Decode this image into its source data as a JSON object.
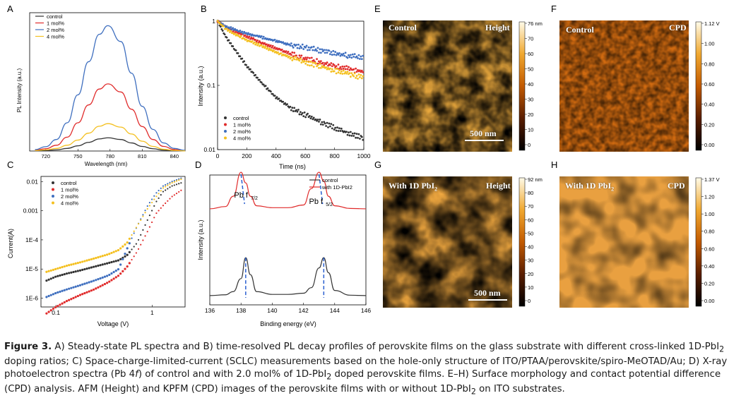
{
  "panels": {
    "A": {
      "label": "A",
      "ylabel": "PL Intensity (a.u.)",
      "xlabel": "Wavelength (nm)"
    },
    "B": {
      "label": "B",
      "ylabel": "Intensity (a.u.)",
      "xlabel": "Time (ns)"
    },
    "C": {
      "label": "C",
      "ylabel": "Current(A)",
      "xlabel": "Voltage (V)"
    },
    "D": {
      "label": "D",
      "ylabel": "Intensity (a.u.)",
      "xlabel": "Binding energy (eV)",
      "peak1": "Pb f",
      "peak1_sub": "7/2",
      "peak2": "Pb f",
      "peak2_sub": "5/2"
    },
    "E": {
      "label": "E",
      "left": "Control",
      "right": "Height",
      "scale": "500 nm",
      "cb_ticks": [
        "76 nm",
        "70",
        "60",
        "50",
        "40",
        "30",
        "20",
        "10",
        "0"
      ]
    },
    "F": {
      "label": "F",
      "left": "Control",
      "right": "CPD",
      "cb_ticks": [
        "1.12 V",
        "1.00",
        "0.80",
        "0.60",
        "0.40",
        "0.20",
        "0.00"
      ]
    },
    "G": {
      "label": "G",
      "left": "With 1D PbI",
      "left_sub": "2",
      "right": "Height",
      "scale": "500 nm",
      "cb_ticks": [
        "92 nm",
        "80",
        "70",
        "60",
        "50",
        "40",
        "30",
        "20",
        "10",
        "0"
      ]
    },
    "H": {
      "label": "H",
      "left": "With 1D PbI",
      "left_sub": "2",
      "right": "CPD",
      "cb_ticks": [
        "1.37 V",
        "1.20",
        "1.00",
        "0.80",
        "0.60",
        "0.40",
        "0.20",
        "0.00"
      ]
    }
  },
  "chart_data": [
    {
      "type": "line",
      "panel": "A",
      "x": [
        710,
        720,
        730,
        740,
        750,
        760,
        770,
        778,
        790,
        800,
        810,
        820,
        830,
        840,
        850
      ],
      "series": [
        {
          "name": "control",
          "color": "#333333",
          "values": [
            0.1,
            0.2,
            0.4,
            0.9,
            1.8,
            3.0,
            4.2,
            4.6,
            4.0,
            2.8,
            1.6,
            0.8,
            0.3,
            0.1,
            0.05
          ]
        },
        {
          "name": "1 mol%",
          "color": "#e02b2b",
          "values": [
            0.3,
            0.8,
            2.0,
            4.8,
            9.8,
            16.0,
            21.5,
            23.3,
            20.5,
            14.5,
            8.5,
            4.0,
            1.6,
            0.5,
            0.1
          ]
        },
        {
          "name": "2 mol%",
          "color": "#3f6fbf",
          "values": [
            0.5,
            1.5,
            4.0,
            9.8,
            19.5,
            31.0,
            40.5,
            43.5,
            38.0,
            27.0,
            15.5,
            7.5,
            2.8,
            0.9,
            0.2
          ]
        },
        {
          "name": "4 mol%",
          "color": "#f4c020",
          "values": [
            0.15,
            0.4,
            0.9,
            2.0,
            3.8,
            6.2,
            8.6,
            9.5,
            8.3,
            5.9,
            3.4,
            1.6,
            0.6,
            0.2,
            0.05
          ]
        }
      ],
      "xticks": [
        720,
        730,
        750,
        760,
        780,
        790,
        810,
        820,
        840
      ],
      "xtick_labels": [
        "720",
        "750",
        "780",
        "810",
        "840"
      ],
      "xlim": [
        705,
        850
      ],
      "ylim": [
        0,
        48
      ],
      "legend": "top-left"
    },
    {
      "type": "scatter",
      "panel": "B",
      "x": [
        0,
        50,
        100,
        200,
        300,
        400,
        500,
        600,
        700,
        800,
        900,
        1000
      ],
      "series": [
        {
          "name": "control",
          "color": "#333333",
          "values": [
            1.0,
            0.6,
            0.42,
            0.2,
            0.11,
            0.065,
            0.045,
            0.035,
            0.027,
            0.022,
            0.018,
            0.015
          ]
        },
        {
          "name": "1 mol%",
          "color": "#e02b2b",
          "values": [
            1.0,
            0.82,
            0.72,
            0.58,
            0.46,
            0.38,
            0.31,
            0.26,
            0.23,
            0.2,
            0.18,
            0.16
          ]
        },
        {
          "name": "2 mol%",
          "color": "#3f6fbf",
          "values": [
            1.0,
            0.85,
            0.76,
            0.64,
            0.56,
            0.49,
            0.43,
            0.39,
            0.35,
            0.32,
            0.29,
            0.27
          ]
        },
        {
          "name": "4 mol%",
          "color": "#f4c020",
          "values": [
            1.0,
            0.78,
            0.66,
            0.51,
            0.41,
            0.33,
            0.27,
            0.23,
            0.2,
            0.17,
            0.15,
            0.13
          ]
        }
      ],
      "xtick_labels": [
        "0",
        "200",
        "400",
        "600",
        "800",
        "1000"
      ],
      "ytick_labels": [
        "1",
        "0.1",
        "0.01"
      ],
      "xlim": [
        0,
        1000
      ],
      "ylim": [
        0.01,
        1
      ],
      "yscale": "log",
      "legend": "bottom-left"
    },
    {
      "type": "scatter",
      "panel": "C",
      "x": [
        0.08,
        0.1,
        0.13,
        0.18,
        0.25,
        0.35,
        0.45,
        0.55,
        0.7,
        0.9,
        1.1,
        1.3,
        1.6,
        2.0
      ],
      "series": [
        {
          "name": "control",
          "color": "#333333",
          "values": [
            4e-06,
            5.5e-06,
            7e-06,
            9e-06,
            1.2e-05,
            1.6e-05,
            2e-05,
            3e-05,
            8e-05,
            0.0005,
            0.002,
            0.0045,
            0.007,
            0.009
          ]
        },
        {
          "name": "1 mol%",
          "color": "#e02b2b",
          "values": [
            3e-07,
            5e-07,
            8e-07,
            1.3e-06,
            2e-06,
            3.5e-06,
            6e-06,
            1.2e-05,
            4e-05,
            0.0002,
            0.0008,
            0.0015,
            0.003,
            0.005
          ]
        },
        {
          "name": "2 mol%",
          "color": "#3f6fbf",
          "values": [
            1.1e-06,
            1.5e-06,
            2e-06,
            2.8e-06,
            4e-06,
            6e-06,
            1e-05,
            5e-05,
            0.0003,
            0.0015,
            0.004,
            0.007,
            0.01,
            0.013
          ]
        },
        {
          "name": "4 mol%",
          "color": "#f4c020",
          "values": [
            8e-06,
            1e-05,
            1.3e-05,
            1.7e-05,
            2.3e-05,
            3.2e-05,
            4.5e-05,
            8e-05,
            0.0003,
            0.0012,
            0.003,
            0.006,
            0.009,
            0.012
          ]
        }
      ],
      "xtick_labels": [
        "0.1",
        "1"
      ],
      "ytick_labels": [
        "0.01",
        "0.001",
        "1E-4",
        "1E-5",
        "1E-6"
      ],
      "xlim": [
        0.07,
        2.2
      ],
      "ylim": [
        5e-07,
        0.015
      ],
      "xscale": "log",
      "yscale": "log",
      "legend": "top-left"
    },
    {
      "type": "line",
      "panel": "D",
      "x": [
        136,
        137,
        137.5,
        138,
        138.3,
        138.6,
        139,
        140,
        141,
        142,
        142.5,
        143,
        143.3,
        143.6,
        144,
        145,
        146
      ],
      "series": [
        {
          "name": "control",
          "color": "#333333",
          "values": [
            0.02,
            0.04,
            0.12,
            0.45,
            0.98,
            0.55,
            0.12,
            0.05,
            0.05,
            0.08,
            0.22,
            0.72,
            0.98,
            0.6,
            0.15,
            0.03,
            0.02
          ]
        },
        {
          "name": "with 1D-PbI2",
          "color": "#e02b2b",
          "values": [
            0.02,
            0.08,
            0.35,
            0.98,
            0.7,
            0.35,
            0.1,
            0.05,
            0.05,
            0.12,
            0.55,
            0.98,
            0.75,
            0.35,
            0.1,
            0.03,
            0.02
          ]
        }
      ],
      "xtick_labels": [
        "136",
        "138",
        "140",
        "142",
        "144",
        "146"
      ],
      "xlim": [
        136,
        146
      ],
      "legend": "top-right"
    }
  ],
  "caption": {
    "fig": "Figure 3.",
    "text": "A) Steady-state PL spectra and B) time-resolved PL decay profiles of perovskite films on the glass substrate with different cross-linked 1D-PbI",
    "t2": " doping ratios; C) Space-charge-limited-current (SCLC) measurements based on the hole-only structure of ITO/PTAA/perovskite/spiro-MeOTAD/Au; D) X-ray photoelectron spectra (Pb 4",
    "t3": ") of control and with 2.0 mol% of 1D-PbI",
    "t4": " doped perovskite films. E–H) Surface morphology and contact potential difference (CPD) analysis. AFM (Height) and KPFM (CPD) images of the perovskite films with or without 1D-PbI",
    "t5": " on ITO substrates.",
    "sub": "2",
    "f": "f"
  }
}
